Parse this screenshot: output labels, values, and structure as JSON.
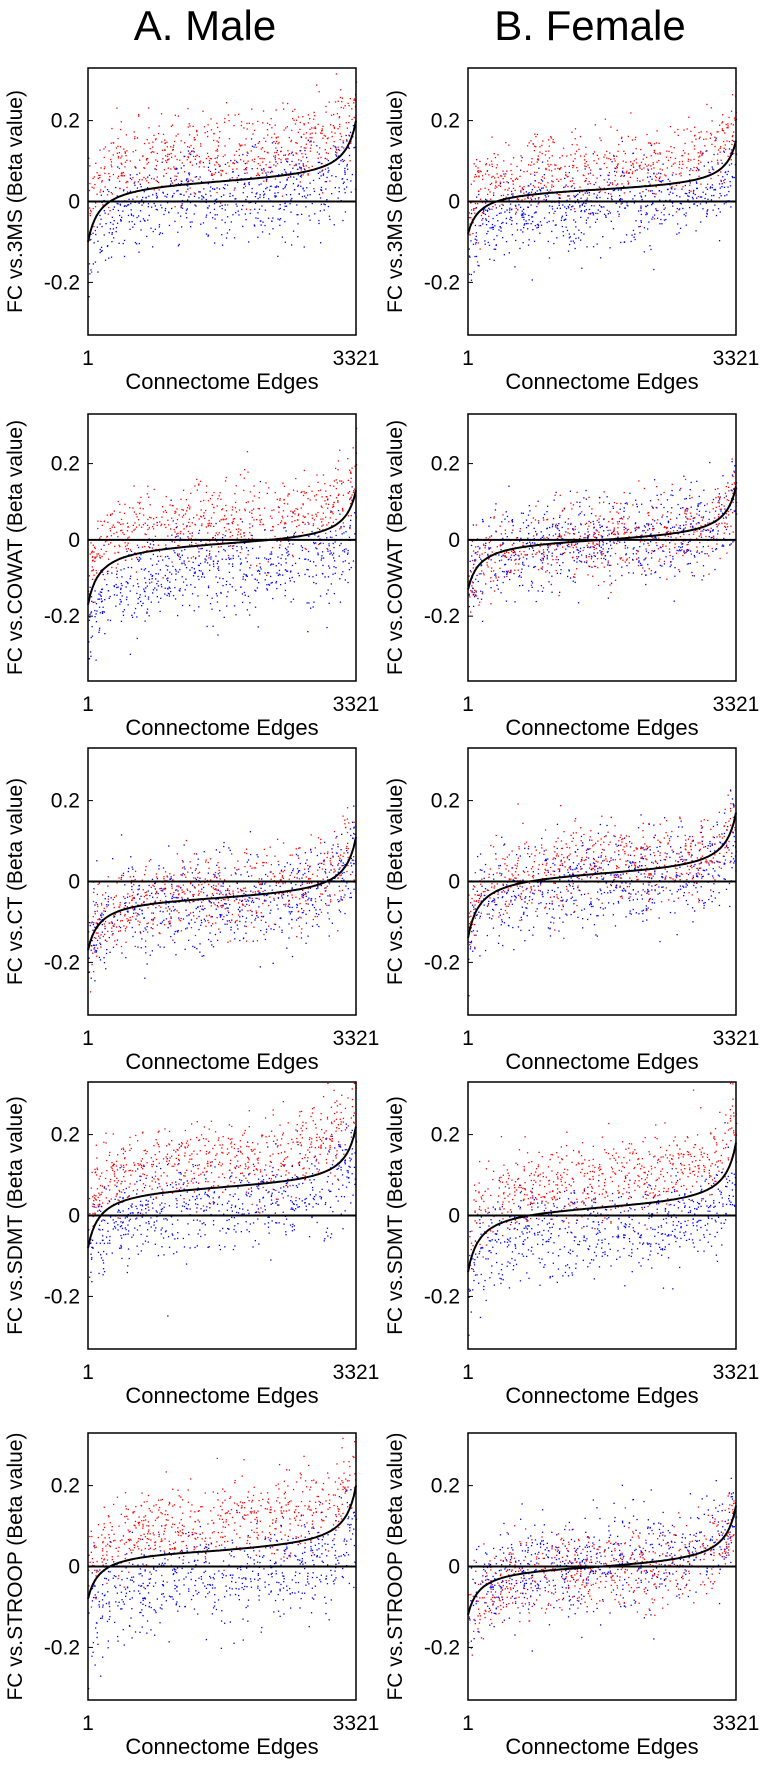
{
  "columns": [
    {
      "title": "A. Male"
    },
    {
      "title": "B. Female"
    }
  ],
  "colors": {
    "series_a": "#ff0000",
    "series_b": "#0000ff",
    "curve": "#000000",
    "frame": "#000000"
  },
  "chart_data": [
    {
      "type": "scatter",
      "panel": "male-3ms",
      "xlabel": "Connectome Edges",
      "ylabel": "FC vs.3MS (Beta value)",
      "xlim": [
        1,
        3321
      ],
      "ylim": [
        -0.33,
        0.33
      ],
      "yticks": [
        -0.2,
        0,
        0.2
      ],
      "ytick_labels": [
        "-0.2",
        "0",
        "0.2"
      ],
      "xtick_labels": [
        "1",
        "3321"
      ],
      "curve": {
        "start": -0.1,
        "end": 0.2,
        "mid": 0.05
      },
      "series": [
        {
          "name": "red",
          "color": "#ff0000",
          "offset": 0.07,
          "spread": 0.05
        },
        {
          "name": "blue",
          "color": "#0000ff",
          "offset": -0.04,
          "spread": 0.055
        }
      ]
    },
    {
      "type": "scatter",
      "panel": "female-3ms",
      "xlabel": "Connectome Edges",
      "ylabel": "FC vs.3MS (Beta value)",
      "xlim": [
        1,
        3321
      ],
      "ylim": [
        -0.33,
        0.33
      ],
      "yticks": [
        -0.2,
        0,
        0.2
      ],
      "ytick_labels": [
        "-0.2",
        "0",
        "0.2"
      ],
      "xtick_labels": [
        "1",
        "3321"
      ],
      "curve": {
        "start": -0.08,
        "end": 0.15,
        "mid": 0.03
      },
      "series": [
        {
          "name": "red",
          "color": "#ff0000",
          "offset": 0.05,
          "spread": 0.05
        },
        {
          "name": "blue",
          "color": "#0000ff",
          "offset": -0.04,
          "spread": 0.05
        }
      ]
    },
    {
      "type": "scatter",
      "panel": "male-cowat",
      "xlabel": "Connectome Edges",
      "ylabel": "FC vs.COWAT (Beta value)",
      "xlim": [
        1,
        3321
      ],
      "ylim": [
        -0.37,
        0.33
      ],
      "yticks": [
        -0.2,
        0,
        0.2
      ],
      "ytick_labels": [
        "-0.2",
        "0",
        "0.2"
      ],
      "xtick_labels": [
        "1",
        "3321"
      ],
      "curve": {
        "start": -0.17,
        "end": 0.13,
        "mid": -0.01
      },
      "series": [
        {
          "name": "red",
          "color": "#ff0000",
          "offset": 0.06,
          "spread": 0.05
        },
        {
          "name": "blue",
          "color": "#0000ff",
          "offset": -0.07,
          "spread": 0.06
        }
      ]
    },
    {
      "type": "scatter",
      "panel": "female-cowat",
      "xlabel": "Connectome Edges",
      "ylabel": "FC vs.COWAT (Beta value)",
      "xlim": [
        1,
        3321
      ],
      "ylim": [
        -0.37,
        0.33
      ],
      "yticks": [
        -0.2,
        0,
        0.2
      ],
      "ytick_labels": [
        "-0.2",
        "0",
        "0.2"
      ],
      "xtick_labels": [
        "1",
        "3321"
      ],
      "curve": {
        "start": -0.13,
        "end": 0.14,
        "mid": 0.0
      },
      "series": [
        {
          "name": "red",
          "color": "#ff0000",
          "offset": 0.0,
          "spread": 0.05
        },
        {
          "name": "blue",
          "color": "#0000ff",
          "offset": 0.0,
          "spread": 0.06
        }
      ]
    },
    {
      "type": "scatter",
      "panel": "male-ct",
      "xlabel": "Connectome Edges",
      "ylabel": "FC vs.CT (Beta value)",
      "xlim": [
        1,
        3321
      ],
      "ylim": [
        -0.33,
        0.33
      ],
      "yticks": [
        -0.2,
        0,
        0.2
      ],
      "ytick_labels": [
        "-0.2",
        "0",
        "0.2"
      ],
      "xtick_labels": [
        "1",
        "3321"
      ],
      "curve": {
        "start": -0.17,
        "end": 0.11,
        "mid": -0.04
      },
      "series": [
        {
          "name": "red",
          "color": "#ff0000",
          "offset": 0.01,
          "spread": 0.05
        },
        {
          "name": "blue",
          "color": "#0000ff",
          "offset": -0.01,
          "spread": 0.06
        }
      ]
    },
    {
      "type": "scatter",
      "panel": "female-ct",
      "xlabel": "Connectome Edges",
      "ylabel": "FC vs.CT (Beta value)",
      "xlim": [
        1,
        3321
      ],
      "ylim": [
        -0.33,
        0.33
      ],
      "yticks": [
        -0.2,
        0,
        0.2
      ],
      "ytick_labels": [
        "-0.2",
        "0",
        "0.2"
      ],
      "xtick_labels": [
        "1",
        "3321"
      ],
      "curve": {
        "start": -0.14,
        "end": 0.17,
        "mid": 0.02
      },
      "series": [
        {
          "name": "red",
          "color": "#ff0000",
          "offset": 0.02,
          "spread": 0.05
        },
        {
          "name": "blue",
          "color": "#0000ff",
          "offset": -0.02,
          "spread": 0.055
        }
      ]
    },
    {
      "type": "scatter",
      "panel": "male-sdmt",
      "xlabel": "Connectome Edges",
      "ylabel": "FC vs.SDMT (Beta value)",
      "xlim": [
        1,
        3321
      ],
      "ylim": [
        -0.33,
        0.33
      ],
      "yticks": [
        -0.2,
        0,
        0.2
      ],
      "ytick_labels": [
        "-0.2",
        "0",
        "0.2"
      ],
      "xtick_labels": [
        "1",
        "3321"
      ],
      "curve": {
        "start": -0.08,
        "end": 0.22,
        "mid": 0.07
      },
      "series": [
        {
          "name": "red",
          "color": "#ff0000",
          "offset": 0.07,
          "spread": 0.05
        },
        {
          "name": "blue",
          "color": "#0000ff",
          "offset": -0.04,
          "spread": 0.055
        }
      ]
    },
    {
      "type": "scatter",
      "panel": "female-sdmt",
      "xlabel": "Connectome Edges",
      "ylabel": "FC vs.SDMT (Beta value)",
      "xlim": [
        1,
        3321
      ],
      "ylim": [
        -0.33,
        0.33
      ],
      "yticks": [
        -0.2,
        0,
        0.2
      ],
      "ytick_labels": [
        "-0.2",
        "0",
        "0.2"
      ],
      "xtick_labels": [
        "1",
        "3321"
      ],
      "curve": {
        "start": -0.14,
        "end": 0.18,
        "mid": 0.02
      },
      "series": [
        {
          "name": "red",
          "color": "#ff0000",
          "offset": 0.07,
          "spread": 0.05
        },
        {
          "name": "blue",
          "color": "#0000ff",
          "offset": -0.05,
          "spread": 0.055
        }
      ]
    },
    {
      "type": "scatter",
      "panel": "male-stroop",
      "xlabel": "Connectome Edges",
      "ylabel": "FC vs.STROOP (Beta value)",
      "xlim": [
        1,
        3321
      ],
      "ylim": [
        -0.33,
        0.33
      ],
      "yticks": [
        -0.2,
        0,
        0.2
      ],
      "ytick_labels": [
        "-0.2",
        "0",
        "0.2"
      ],
      "xtick_labels": [
        "1",
        "3321"
      ],
      "curve": {
        "start": -0.08,
        "end": 0.2,
        "mid": 0.04
      },
      "series": [
        {
          "name": "red",
          "color": "#ff0000",
          "offset": 0.07,
          "spread": 0.05
        },
        {
          "name": "blue",
          "color": "#0000ff",
          "offset": -0.07,
          "spread": 0.06
        }
      ]
    },
    {
      "type": "scatter",
      "panel": "female-stroop",
      "xlabel": "Connectome Edges",
      "ylabel": "FC vs.STROOP (Beta value)",
      "xlim": [
        1,
        3321
      ],
      "ylim": [
        -0.33,
        0.33
      ],
      "yticks": [
        -0.2,
        0,
        0.2
      ],
      "ytick_labels": [
        "-0.2",
        "0",
        "0.2"
      ],
      "xtick_labels": [
        "1",
        "3321"
      ],
      "curve": {
        "start": -0.12,
        "end": 0.15,
        "mid": 0.0
      },
      "series": [
        {
          "name": "red",
          "color": "#ff0000",
          "offset": -0.01,
          "spread": 0.05
        },
        {
          "name": "blue",
          "color": "#0000ff",
          "offset": 0.01,
          "spread": 0.06
        }
      ]
    }
  ]
}
